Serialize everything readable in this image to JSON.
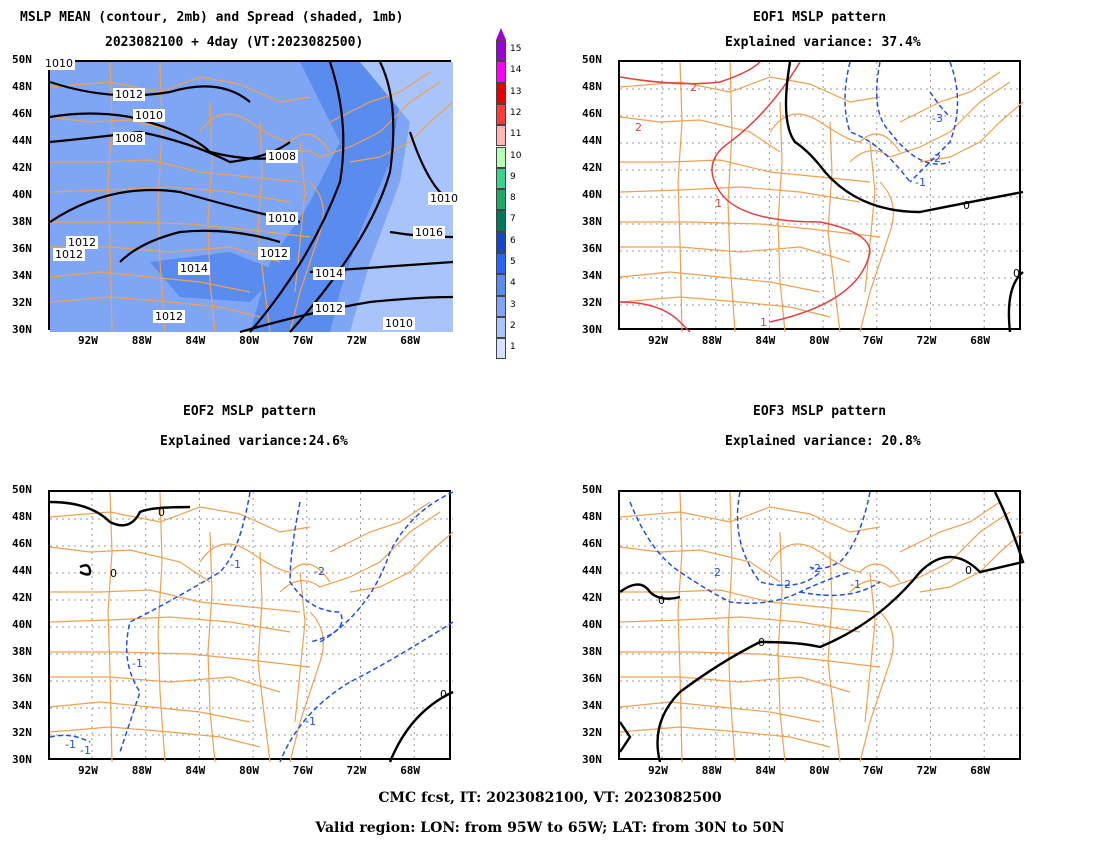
{
  "panels": [
    {
      "id": "p1",
      "title1": "MSLP MEAN (contour, 2mb) and Spread (shaded, 1mb)",
      "title2": "2023082100 + 4day (VT:2023082500)"
    },
    {
      "id": "p2",
      "title1": "EOF1 MSLP pattern",
      "title2": "Explained variance: 37.4%"
    },
    {
      "id": "p3",
      "title1": "EOF2 MSLP pattern",
      "title2": "Explained variance:24.6%"
    },
    {
      "id": "p4",
      "title1": "EOF3 MSLP pattern",
      "title2": "Explained variance: 20.8%"
    }
  ],
  "lat_labels": [
    "50N",
    "48N",
    "46N",
    "44N",
    "42N",
    "40N",
    "38N",
    "36N",
    "34N",
    "32N",
    "30N"
  ],
  "lon_labels": [
    "92W",
    "88W",
    "84W",
    "80W",
    "76W",
    "72W",
    "68W"
  ],
  "colorbar": {
    "labels": [
      "15",
      "14",
      "13",
      "12",
      "11",
      "10",
      "9",
      "8",
      "7",
      "6",
      "5",
      "4",
      "3",
      "2",
      "1"
    ],
    "colors": [
      "#9a00d8",
      "#ff00ff",
      "#e60000",
      "#ff3c3c",
      "#ffb4b4",
      "#b4ffb4",
      "#3cd28c",
      "#1eaa64",
      "#007a5a",
      "#1446c8",
      "#2864ff",
      "#5a8cf0",
      "#7ea6f5",
      "#a8c4fb",
      "#d4e2ff"
    ]
  },
  "contour_labels": {
    "p1": [
      "1010",
      "1012",
      "1010",
      "1008",
      "1008",
      "1010",
      "1012",
      "1012",
      "1014",
      "1012",
      "1014",
      "1012",
      "1012",
      "1010",
      "1016",
      "1010"
    ],
    "p2": [
      "2",
      "2",
      "1",
      "1",
      "-3",
      "-2",
      "-1",
      "0",
      "0"
    ],
    "p3": [
      "0",
      "0",
      "-1",
      "-2",
      "-1",
      "-1",
      "-1",
      "-1",
      "0"
    ],
    "p4": [
      "0",
      "-2",
      "-2",
      "-2",
      "-1",
      "0",
      "0"
    ]
  },
  "footer": {
    "line1": "CMC fcst, IT: 2023082100, VT: 2023082500",
    "line2": "Valid region: LON: from 95W to 65W; LAT: from 30N to 50N"
  },
  "colors": {
    "state_lines": "#f0a050",
    "frame": "#000000",
    "positive": "#e04040",
    "negative": "#2050e0"
  }
}
